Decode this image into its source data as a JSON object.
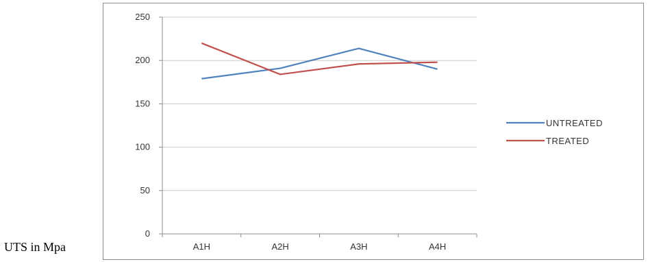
{
  "side_label": "UTS in Mpa",
  "chart_data": {
    "type": "line",
    "title": "",
    "xlabel": "",
    "ylabel": "",
    "categories": [
      "A1H",
      "A2H",
      "A3H",
      "A4H"
    ],
    "ylim": [
      0,
      250
    ],
    "yticks": [
      0,
      50,
      100,
      150,
      200,
      250
    ],
    "grid": true,
    "legend_position": "right",
    "series": [
      {
        "name": "UNTREATED",
        "color": "#4f81bd",
        "values": [
          179,
          191,
          214,
          190
        ]
      },
      {
        "name": "TREATED",
        "color": "#c0504d",
        "values": [
          220,
          184,
          196,
          198
        ]
      }
    ]
  }
}
